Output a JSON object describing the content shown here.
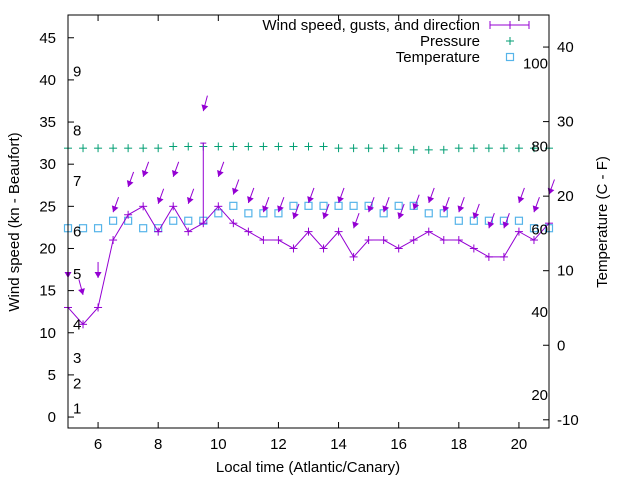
{
  "chart_data": {
    "type": "line",
    "title": "",
    "xlabel": "Local time (Atlantic/Canary)",
    "ylabel": "Wind speed (kn - Beaufort)",
    "y2label": "Temperature (C - F)",
    "xlim": [
      5,
      21
    ],
    "ylim": [
      -1.3,
      47.7
    ],
    "y2lim": [
      -11.1,
      44.3
    ],
    "grid": false,
    "legend_position": "top-right",
    "x_ticks": [
      "6",
      "8",
      "10",
      "12",
      "14",
      "16",
      "18",
      "20"
    ],
    "x_tick_values": [
      6,
      8,
      10,
      12,
      14,
      16,
      18,
      20
    ],
    "y_ticks": [
      "0",
      "5",
      "10",
      "15",
      "20",
      "25",
      "30",
      "35",
      "40",
      "45"
    ],
    "y_tick_values": [
      0,
      5,
      10,
      15,
      20,
      25,
      30,
      35,
      40,
      45
    ],
    "y2_ticks": [
      "-10",
      "0",
      "10",
      "20",
      "30",
      "40"
    ],
    "y2_tick_values": [
      -10,
      0,
      10,
      20,
      30,
      40
    ],
    "fahrenheit_labels": [
      "20",
      "40",
      "60",
      "80",
      "100"
    ],
    "fahrenheit_values": [
      20,
      40,
      60,
      80,
      100
    ],
    "beaufort_labels": [
      "1",
      "2",
      "3",
      "4",
      "5",
      "6",
      "7",
      "8",
      "9"
    ],
    "beaufort_kn": [
      1,
      4,
      7,
      11,
      17,
      22,
      28,
      34,
      41
    ],
    "legend": [
      "Wind speed, gusts, and direction",
      "Pressure",
      "Temperature"
    ],
    "colors": {
      "wind": "#9400d3",
      "pressure": "#009e73",
      "temperature": "#56b4e9"
    },
    "x": [
      5,
      5.5,
      6,
      6.5,
      7,
      7.5,
      8,
      8.5,
      9,
      9.5,
      10,
      10.5,
      11,
      11.5,
      12,
      12.5,
      13,
      13.5,
      14,
      14.5,
      15,
      15.5,
      16,
      16.5,
      17,
      17.5,
      18,
      18.5,
      19,
      19.5,
      20,
      20.5,
      21
    ],
    "series": [
      {
        "name": "Wind speed, gusts, and direction",
        "axis": "y",
        "values": [
          13,
          11,
          13,
          21,
          24,
          25,
          22,
          25,
          22,
          23,
          25,
          23,
          22,
          21,
          21,
          20,
          22,
          20,
          22,
          19,
          21,
          21,
          20,
          21,
          22,
          21,
          21,
          20,
          19,
          19,
          22,
          21,
          23
        ],
        "gusts": [
          {
            "x": 9.5,
            "value": 32.5
          }
        ],
        "direction_arrow_level": [
          16.5,
          14.5,
          16.5,
          24.3,
          27.3,
          28.5,
          25.3,
          28.5,
          25.3,
          36.3,
          28.5,
          26.4,
          25.4,
          24.3,
          24.3,
          23.5,
          25.4,
          23.5,
          25.4,
          22.4,
          24.3,
          24.3,
          23.5,
          24.6,
          25.4,
          24.3,
          24.3,
          23.5,
          22.4,
          22.4,
          25.4,
          24.3,
          26.4
        ],
        "direction_from_deg": [
          0,
          345,
          0,
          20,
          20,
          20,
          20,
          20,
          20,
          15,
          20,
          20,
          20,
          20,
          20,
          20,
          20,
          20,
          20,
          20,
          20,
          20,
          20,
          20,
          20,
          20,
          20,
          20,
          20,
          20,
          20,
          20,
          20
        ]
      },
      {
        "name": "Pressure",
        "axis": "y (scaled)",
        "values": [
          31.9,
          31.9,
          31.9,
          31.9,
          31.9,
          31.9,
          31.9,
          32.1,
          32.1,
          32.1,
          32.1,
          32.1,
          32.1,
          32.1,
          32.1,
          32.1,
          32.1,
          32.1,
          31.9,
          31.9,
          31.9,
          31.9,
          31.9,
          31.7,
          31.7,
          31.7,
          31.9,
          31.9,
          31.9,
          31.9,
          31.9,
          31.9,
          31.9
        ]
      },
      {
        "name": "Temperature",
        "axis": "y2",
        "values": [
          15.7,
          15.7,
          15.7,
          16.7,
          16.7,
          15.7,
          15.7,
          16.7,
          16.7,
          16.7,
          17.7,
          18.7,
          17.7,
          17.7,
          17.7,
          18.7,
          18.7,
          18.7,
          18.7,
          18.7,
          18.7,
          17.7,
          18.7,
          18.7,
          17.7,
          17.7,
          16.7,
          16.7,
          16.7,
          16.7,
          16.7,
          15.7,
          15.7
        ]
      }
    ]
  }
}
